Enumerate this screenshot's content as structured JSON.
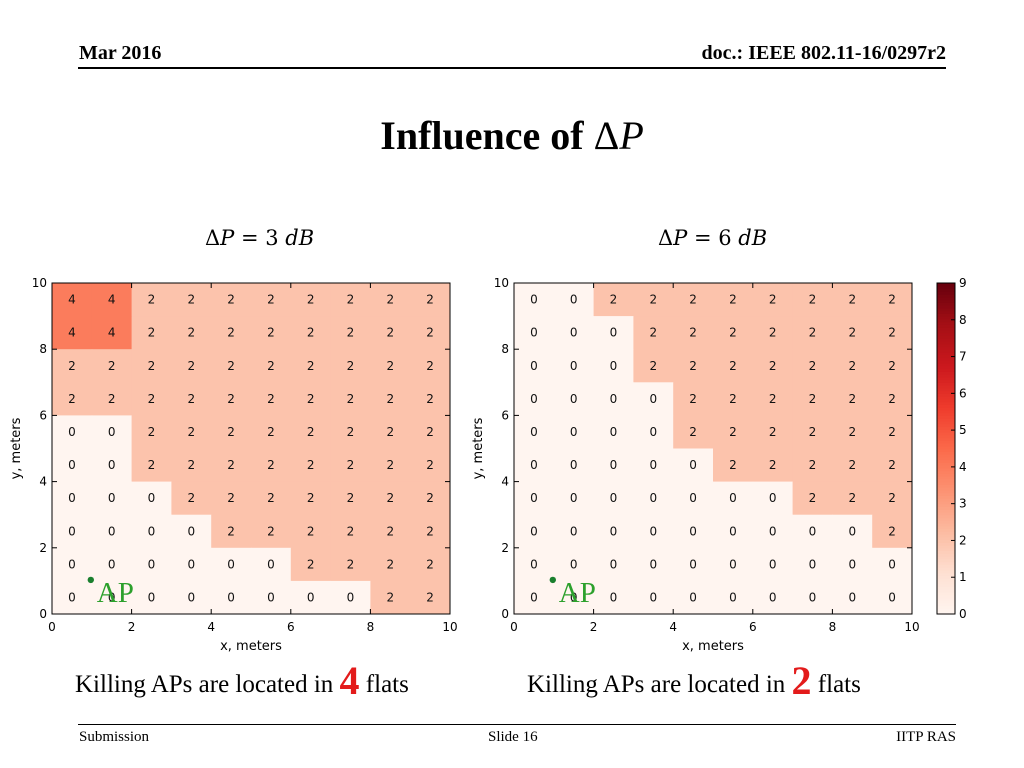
{
  "header": {
    "date": "Mar 2016",
    "doc": "doc.: IEEE 802.11-16/0297r2"
  },
  "title": {
    "text": "Influence of",
    "symbol": "Δ",
    "var": "P"
  },
  "footer": {
    "left": "Submission",
    "center": "Slide 16",
    "right": "IITP RAS"
  },
  "notes": [
    {
      "pre": "Killing APs are located in",
      "num": "4",
      "post": "flats"
    },
    {
      "pre": "Killing APs are located in",
      "num": "2",
      "post": "flats"
    }
  ],
  "chart_data": [
    {
      "type": "heatmap",
      "title": "ΔP = 3 dB",
      "xlabel": "x, meters",
      "ylabel": "y, meters",
      "xlim": [
        0,
        10
      ],
      "ylim": [
        0,
        10
      ],
      "xticks": [
        0,
        2,
        4,
        6,
        8,
        10
      ],
      "yticks": [
        0,
        2,
        4,
        6,
        8,
        10
      ],
      "annotation": {
        "text": "AP",
        "x": 1,
        "y": 1,
        "color": "#2ca02c"
      },
      "rows_top_to_bottom": [
        [
          4,
          4,
          2,
          2,
          2,
          2,
          2,
          2,
          2,
          2
        ],
        [
          4,
          4,
          2,
          2,
          2,
          2,
          2,
          2,
          2,
          2
        ],
        [
          2,
          2,
          2,
          2,
          2,
          2,
          2,
          2,
          2,
          2
        ],
        [
          2,
          2,
          2,
          2,
          2,
          2,
          2,
          2,
          2,
          2
        ],
        [
          0,
          0,
          2,
          2,
          2,
          2,
          2,
          2,
          2,
          2
        ],
        [
          0,
          0,
          2,
          2,
          2,
          2,
          2,
          2,
          2,
          2
        ],
        [
          0,
          0,
          0,
          2,
          2,
          2,
          2,
          2,
          2,
          2
        ],
        [
          0,
          0,
          0,
          0,
          2,
          2,
          2,
          2,
          2,
          2
        ],
        [
          0,
          0,
          0,
          0,
          0,
          0,
          2,
          2,
          2,
          2
        ],
        [
          0,
          0,
          0,
          0,
          0,
          0,
          0,
          0,
          2,
          2
        ]
      ]
    },
    {
      "type": "heatmap",
      "title": "ΔP = 6 dB",
      "xlabel": "x, meters",
      "ylabel": "y, meters",
      "xlim": [
        0,
        10
      ],
      "ylim": [
        0,
        10
      ],
      "xticks": [
        0,
        2,
        4,
        6,
        8,
        10
      ],
      "yticks": [
        0,
        2,
        4,
        6,
        8,
        10
      ],
      "annotation": {
        "text": "AP",
        "x": 1,
        "y": 1,
        "color": "#2ca02c"
      },
      "rows_top_to_bottom": [
        [
          0,
          0,
          2,
          2,
          2,
          2,
          2,
          2,
          2,
          2
        ],
        [
          0,
          0,
          0,
          2,
          2,
          2,
          2,
          2,
          2,
          2
        ],
        [
          0,
          0,
          0,
          2,
          2,
          2,
          2,
          2,
          2,
          2
        ],
        [
          0,
          0,
          0,
          0,
          2,
          2,
          2,
          2,
          2,
          2
        ],
        [
          0,
          0,
          0,
          0,
          2,
          2,
          2,
          2,
          2,
          2
        ],
        [
          0,
          0,
          0,
          0,
          0,
          2,
          2,
          2,
          2,
          2
        ],
        [
          0,
          0,
          0,
          0,
          0,
          0,
          0,
          2,
          2,
          2
        ],
        [
          0,
          0,
          0,
          0,
          0,
          0,
          0,
          0,
          0,
          2
        ],
        [
          0,
          0,
          0,
          0,
          0,
          0,
          0,
          0,
          0,
          0
        ],
        [
          0,
          0,
          0,
          0,
          0,
          0,
          0,
          0,
          0,
          0
        ]
      ]
    }
  ],
  "colorbar": {
    "min": 0,
    "max": 9,
    "ticks": [
      0,
      1,
      2,
      3,
      4,
      5,
      6,
      7,
      8,
      9
    ],
    "colormap": "Reds"
  }
}
